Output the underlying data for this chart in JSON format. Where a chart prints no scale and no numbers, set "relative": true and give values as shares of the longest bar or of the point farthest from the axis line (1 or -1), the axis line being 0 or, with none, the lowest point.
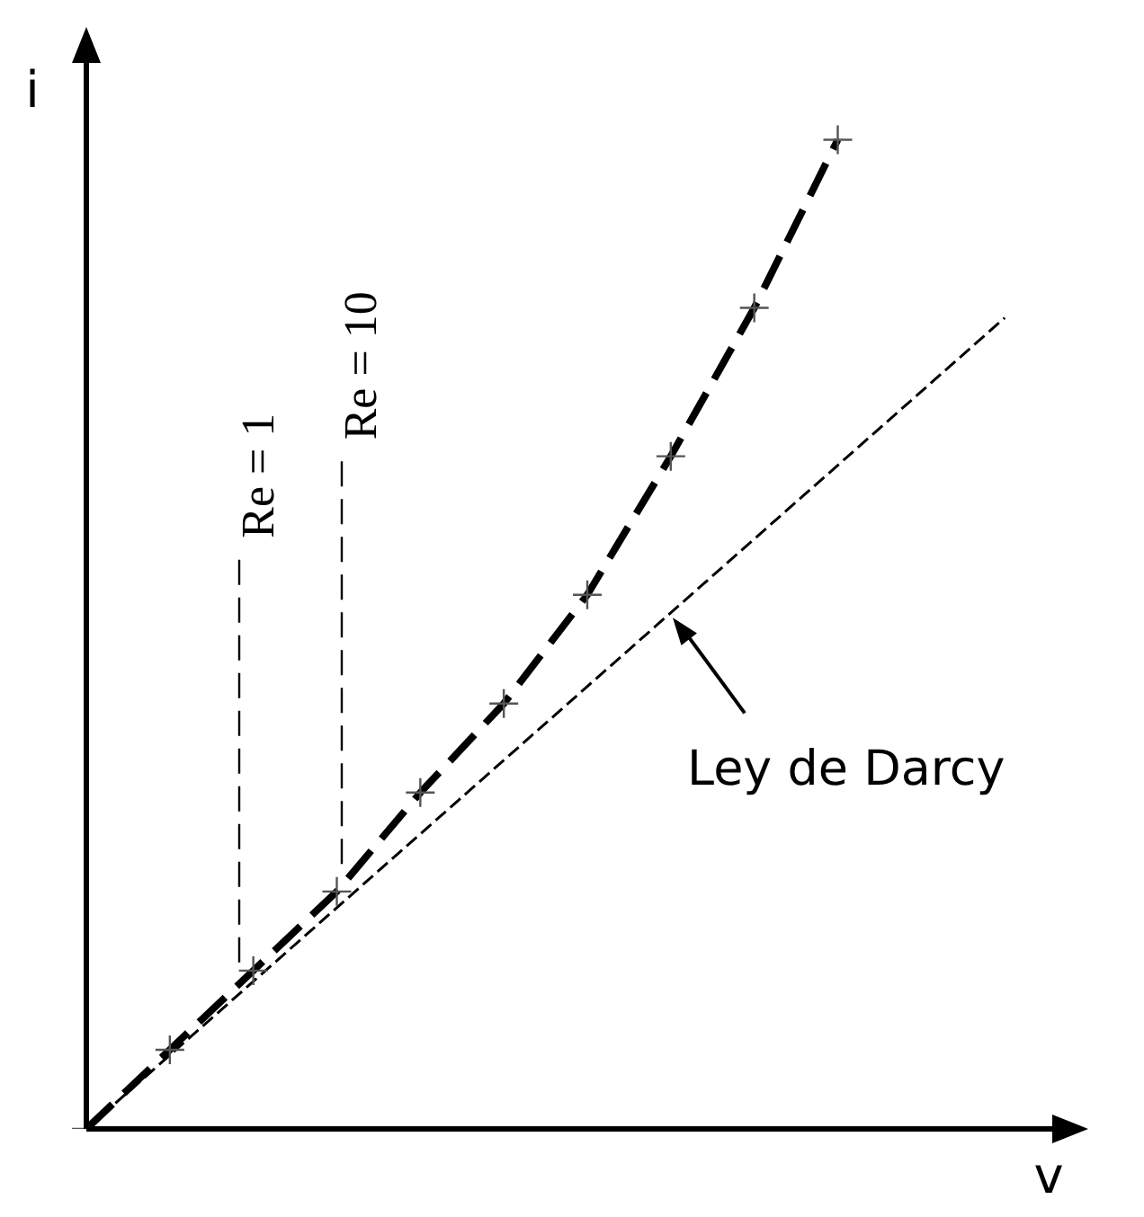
{
  "chart_data": {
    "type": "line",
    "relative": true,
    "xlabel": "v",
    "ylabel": "i",
    "legend": false,
    "categories": [
      null,
      null,
      null,
      null,
      null,
      null,
      null,
      null,
      null,
      null,
      null,
      null,
      null
    ],
    "series": [
      {
        "color": "#000000",
        "line_style": "dashed",
        "marker": "cross",
        "values": [
          0,
          0.08,
          0.16,
          0.24,
          0.34,
          0.43,
          0.54,
          0.68,
          0.83,
          1.0,
          null,
          null,
          null
        ]
      },
      {
        "color": "#000000",
        "line_style": "dashed",
        "marker": "none",
        "values": [
          0,
          null,
          null,
          null,
          null,
          null,
          null,
          null,
          null,
          null,
          null,
          0.82,
          null
        ]
      }
    ],
    "annotations": [
      "Re = 1",
      "Re = 10",
      "Ley de Darcy"
    ]
  }
}
